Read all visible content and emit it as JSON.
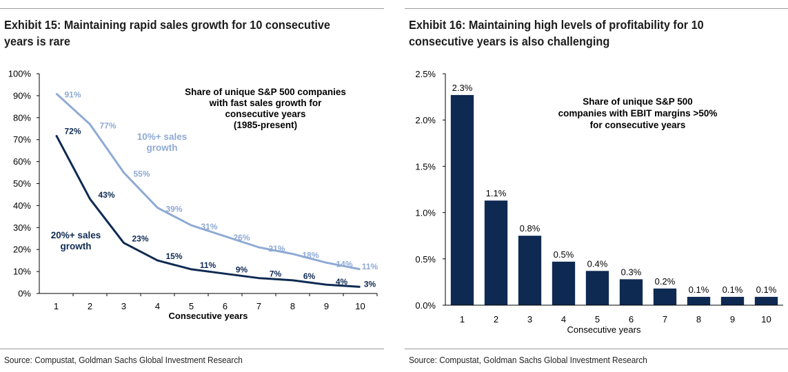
{
  "left": {
    "title": "Exhibit 15: Maintaining rapid sales growth for 10 consecutive years is rare",
    "source": "Source: Compustat, Goldman Sachs Global Investment Research",
    "chart_data": {
      "type": "line",
      "x": [
        1,
        2,
        3,
        4,
        5,
        6,
        7,
        8,
        9,
        10
      ],
      "xlabel": "Consecutive years",
      "ylabel": "",
      "ylim": [
        0,
        100
      ],
      "yticks": [
        "0%",
        "10%",
        "20%",
        "30%",
        "40%",
        "50%",
        "60%",
        "70%",
        "80%",
        "90%",
        "100%"
      ],
      "xticks": [
        "1",
        "2",
        "3",
        "4",
        "5",
        "6",
        "7",
        "8",
        "9",
        "10"
      ],
      "annotation": [
        "Share of unique S&P 500 companies",
        "with fast sales growth for",
        "consecutive years",
        "(1985-present)"
      ],
      "series": [
        {
          "name_lines": [
            "10%+ sales",
            "growth"
          ],
          "color": "#8eaad3",
          "values": [
            91,
            77,
            55,
            39,
            31,
            26,
            21,
            18,
            14,
            11
          ],
          "labels": [
            "91%",
            "77%",
            "55%",
            "39%",
            "31%",
            "26%",
            "21%",
            "18%",
            "14%",
            "11%"
          ]
        },
        {
          "name_lines": [
            "20%+ sales",
            "growth"
          ],
          "color": "#0e2a52",
          "values": [
            72,
            43,
            23,
            15,
            11,
            9,
            7,
            6,
            4,
            3
          ],
          "labels": [
            "72%",
            "43%",
            "23%",
            "15%",
            "11%",
            "9%",
            "7%",
            "6%",
            "4%",
            "3%"
          ]
        }
      ],
      "grid": false
    }
  },
  "right": {
    "title": "Exhibit 16: Maintaining high levels of profitability for 10 consecutive years is also challenging",
    "source": "Source: Compustat, Goldman Sachs Global Investment Research",
    "chart_data": {
      "type": "bar",
      "categories": [
        "1",
        "2",
        "3",
        "4",
        "5",
        "6",
        "7",
        "8",
        "9",
        "10"
      ],
      "values": [
        2.27,
        1.13,
        0.75,
        0.47,
        0.37,
        0.28,
        0.18,
        0.09,
        0.09,
        0.09
      ],
      "labels": [
        "2.3%",
        "1.1%",
        "0.8%",
        "0.5%",
        "0.4%",
        "0.3%",
        "0.2%",
        "0.1%",
        "0.1%",
        "0.1%"
      ],
      "xlabel": "Consecutive years",
      "ylabel": "",
      "ylim": [
        0,
        2.5
      ],
      "yticks": [
        "0.0%",
        "0.5%",
        "1.0%",
        "1.5%",
        "2.0%",
        "2.5%"
      ],
      "annotation": [
        "Share of unique S&P 500",
        "companies with EBIT margins >50%",
        "for consecutive years"
      ],
      "bar_color": "#0e2a52",
      "grid": false
    }
  }
}
